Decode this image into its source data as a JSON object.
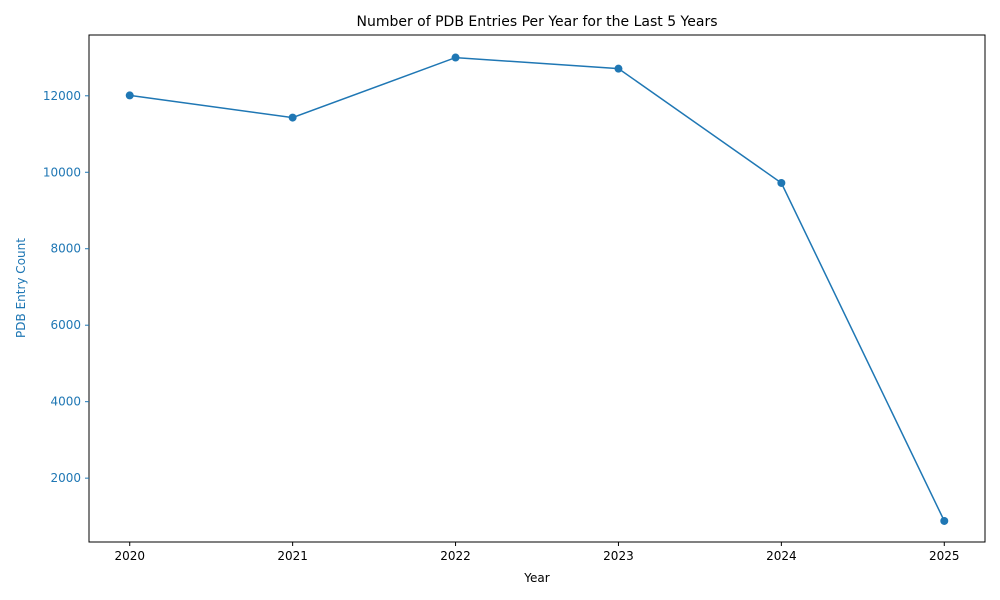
{
  "chart_data": {
    "type": "line",
    "title": "Number of PDB Entries Per Year for the Last 5 Years",
    "xlabel": "Year",
    "ylabel": "PDB Entry Count",
    "x": [
      2020,
      2021,
      2022,
      2023,
      2024,
      2025
    ],
    "series": [
      {
        "values": [
          12010,
          11430,
          13000,
          12710,
          9720,
          880
        ]
      }
    ],
    "xticks": [
      "2020",
      "2021",
      "2022",
      "2023",
      "2024",
      "2025"
    ],
    "yticks": [
      2000,
      4000,
      6000,
      8000,
      10000,
      12000
    ],
    "ylim": [
      330,
      13590
    ],
    "xlim": [
      2019.75,
      2025.25
    ],
    "grid": false,
    "legend": "none",
    "colors": {
      "line": "#1f77b4",
      "y_axis_text": "#1f77b4",
      "text": "#000000"
    }
  }
}
